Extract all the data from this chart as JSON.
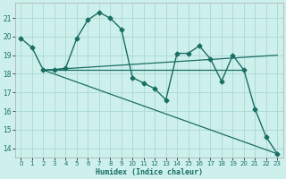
{
  "xlabel": "Humidex (Indice chaleur)",
  "bg_color": "#cdf0ec",
  "grid_color": "#aad8d2",
  "line_color": "#1a6e64",
  "x_ticks": [
    0,
    1,
    2,
    3,
    4,
    5,
    6,
    7,
    8,
    9,
    10,
    11,
    12,
    13,
    14,
    15,
    16,
    17,
    18,
    19,
    20,
    21,
    22,
    23
  ],
  "y_ticks": [
    14,
    15,
    16,
    17,
    18,
    19,
    20,
    21
  ],
  "ylim": [
    13.5,
    21.8
  ],
  "xlim": [
    -0.5,
    23.5
  ],
  "zigzag_x": [
    0,
    1,
    2,
    3,
    4,
    5,
    6,
    7,
    8,
    9,
    10,
    11,
    12,
    13,
    14,
    15,
    16,
    17,
    18,
    19,
    20,
    21,
    22,
    23
  ],
  "zigzag_y": [
    19.9,
    19.4,
    18.2,
    18.2,
    18.3,
    19.9,
    20.9,
    21.3,
    21.0,
    20.4,
    17.8,
    17.5,
    17.2,
    16.6,
    19.1,
    19.1,
    19.5,
    18.8,
    17.6,
    19.0,
    18.2,
    16.1,
    14.6,
    13.7
  ],
  "line_diagonal": [
    [
      2,
      23
    ],
    [
      18.2,
      13.7
    ]
  ],
  "line_flat": [
    [
      2,
      20
    ],
    [
      18.2,
      18.2
    ]
  ],
  "line_rising": [
    [
      2,
      23
    ],
    [
      18.2,
      19.0
    ]
  ],
  "xlabel_fontsize": 6,
  "tick_fontsize": 5
}
